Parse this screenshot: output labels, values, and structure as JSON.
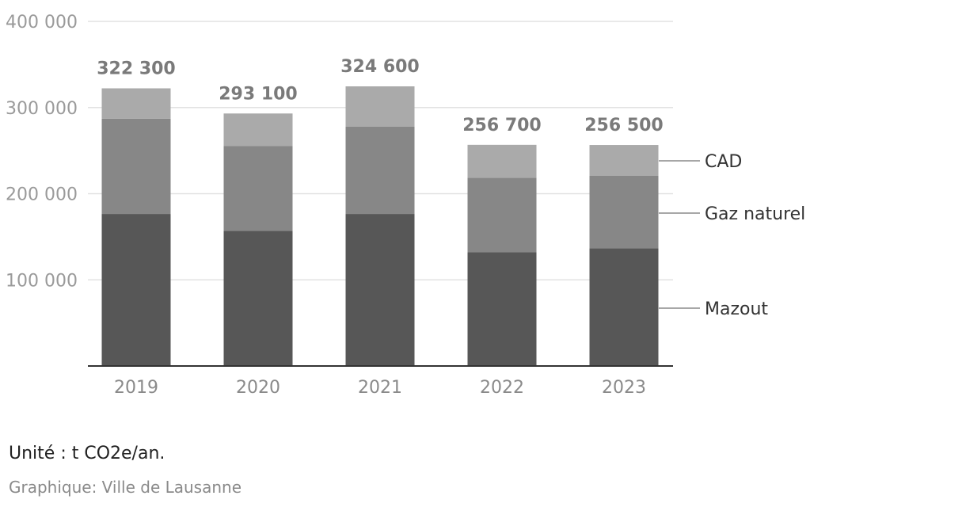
{
  "chart_data": {
    "type": "bar",
    "stacked": true,
    "categories": [
      "2019",
      "2020",
      "2021",
      "2022",
      "2023"
    ],
    "series": [
      {
        "name": "Mazout",
        "values": [
          176500,
          157000,
          176500,
          132000,
          136500
        ],
        "color": "#575757"
      },
      {
        "name": "Gaz naturel",
        "values": [
          110500,
          98500,
          101500,
          86500,
          84500
        ],
        "color": "#878787"
      },
      {
        "name": "CAD",
        "values": [
          35300,
          37600,
          46600,
          38200,
          35500
        ],
        "color": "#aaaaaa"
      }
    ],
    "totals": [
      322300,
      293100,
      324600,
      256700,
      256500
    ],
    "total_labels": [
      "322 300",
      "293 100",
      "324 600",
      "256 700",
      "256 500"
    ],
    "ylim": [
      0,
      400000
    ],
    "yticks": [
      100000,
      200000,
      300000,
      400000
    ],
    "ytick_labels": [
      "100 000",
      "200 000",
      "300 000",
      "400 000"
    ],
    "grid": true,
    "legend_placement": "right, inline labels"
  },
  "notes": {
    "unit": "Unité : t CO2e/an.",
    "source": "Graphique: Ville de Lausanne"
  }
}
